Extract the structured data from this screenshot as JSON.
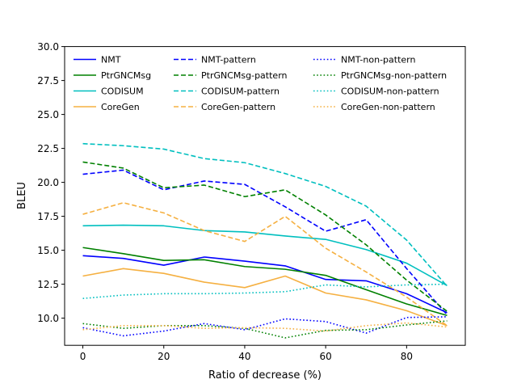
{
  "chart_data": {
    "type": "line",
    "title": "",
    "xlabel": "Ratio of decrease (%)",
    "ylabel": "BLEU",
    "xlim": [
      -4.5,
      94.5
    ],
    "ylim": [
      8.0,
      30.0
    ],
    "xticks": [
      0,
      20,
      40,
      60,
      80
    ],
    "xtick_labels": [
      "0",
      "20",
      "40",
      "60",
      "80"
    ],
    "yticks": [
      10.0,
      12.5,
      15.0,
      17.5,
      20.0,
      22.5,
      25.0,
      27.5,
      30.0
    ],
    "ytick_labels": [
      "10.0",
      "12.5",
      "15.0",
      "17.5",
      "20.0",
      "22.5",
      "25.0",
      "27.5",
      "30.0"
    ],
    "grid": false,
    "legend_position": "top-left",
    "legend_columns": 3,
    "x": [
      0,
      10,
      20,
      30,
      40,
      50,
      60,
      70,
      80,
      90
    ],
    "series": [
      {
        "name": "NMT",
        "color": "#0000ff",
        "style": "solid",
        "values": [
          14.6,
          14.4,
          13.9,
          14.5,
          14.2,
          13.85,
          12.85,
          12.75,
          11.8,
          10.4
        ]
      },
      {
        "name": "PtrGNCMsg",
        "color": "#008000",
        "style": "solid",
        "values": [
          15.2,
          14.75,
          14.25,
          14.3,
          13.8,
          13.6,
          13.15,
          12.1,
          11.05,
          10.2
        ]
      },
      {
        "name": "CODISUM",
        "color": "#00bfbf",
        "style": "solid",
        "values": [
          16.8,
          16.85,
          16.8,
          16.45,
          16.35,
          16.05,
          15.8,
          15.05,
          14.05,
          12.4
        ]
      },
      {
        "name": "CoreGen",
        "color": "#f5b041",
        "style": "solid",
        "values": [
          13.1,
          13.65,
          13.3,
          12.65,
          12.25,
          13.1,
          11.85,
          11.35,
          10.55,
          9.45
        ]
      },
      {
        "name": "NMT-pattern",
        "color": "#0000ff",
        "style": "dashed",
        "values": [
          20.6,
          20.9,
          19.45,
          20.1,
          19.85,
          18.2,
          16.4,
          17.25,
          13.65,
          10.25
        ]
      },
      {
        "name": "PtrGNCMsg-pattern",
        "color": "#008000",
        "style": "dashed",
        "values": [
          21.5,
          21.05,
          19.6,
          19.8,
          18.95,
          19.45,
          17.6,
          15.4,
          12.8,
          10.5
        ]
      },
      {
        "name": "CODISUM-pattern",
        "color": "#00bfbf",
        "style": "dashed",
        "values": [
          22.85,
          22.7,
          22.45,
          21.75,
          21.45,
          20.65,
          19.7,
          18.25,
          15.75,
          12.35
        ]
      },
      {
        "name": "CoreGen-pattern",
        "color": "#f5b041",
        "style": "dashed",
        "values": [
          17.65,
          18.5,
          17.75,
          16.45,
          15.65,
          17.5,
          15.15,
          13.4,
          11.55,
          9.45
        ]
      },
      {
        "name": "NMT-non-pattern",
        "color": "#0000ff",
        "style": "dotted",
        "values": [
          9.3,
          8.7,
          9.05,
          9.6,
          9.15,
          9.95,
          9.75,
          8.9,
          10.05,
          10.1
        ]
      },
      {
        "name": "PtrGNCMsg-non-pattern",
        "color": "#008000",
        "style": "dotted",
        "values": [
          9.6,
          9.25,
          9.45,
          9.45,
          9.25,
          8.55,
          9.1,
          9.15,
          9.5,
          9.8
        ]
      },
      {
        "name": "CODISUM-non-pattern",
        "color": "#00bfbf",
        "style": "dotted",
        "values": [
          11.45,
          11.7,
          11.8,
          11.8,
          11.85,
          11.95,
          12.45,
          12.3,
          12.45,
          12.5
        ]
      },
      {
        "name": "CoreGen-non-pattern",
        "color": "#f5b041",
        "style": "dotted",
        "values": [
          9.15,
          9.45,
          9.45,
          9.25,
          9.3,
          9.25,
          9.05,
          9.45,
          9.65,
          9.35
        ]
      }
    ]
  }
}
